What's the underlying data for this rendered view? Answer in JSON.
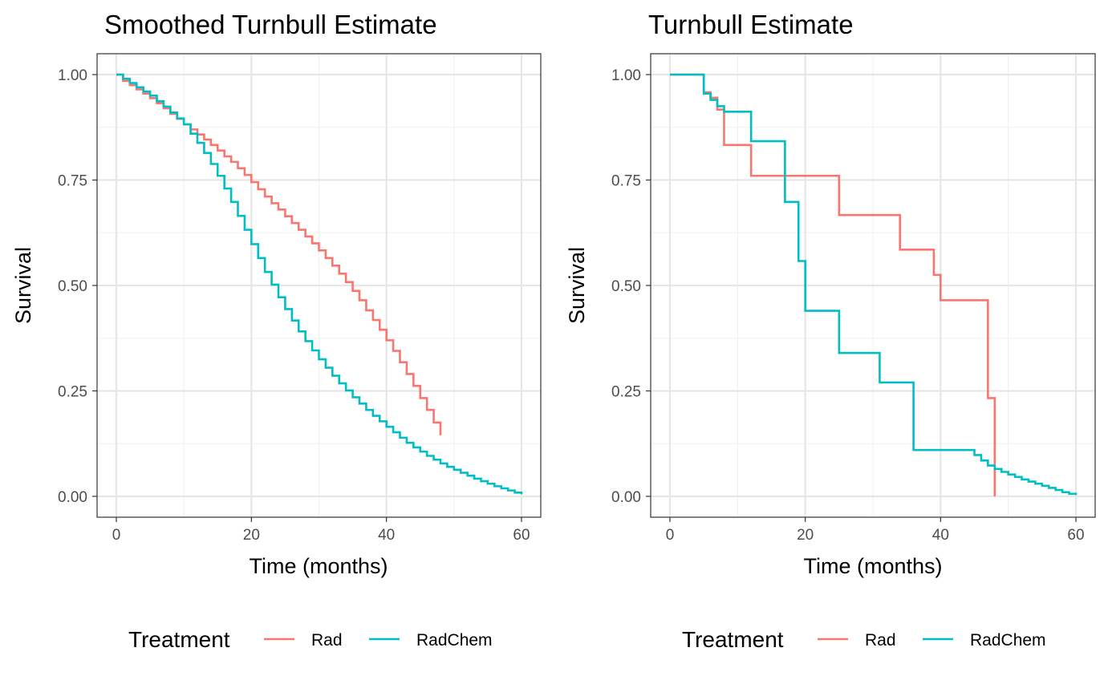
{
  "chart_data": [
    {
      "type": "line",
      "step": true,
      "title": "Smoothed Turnbull Estimate",
      "xlabel": "Time (months)",
      "ylabel": "Survival",
      "xlim": [
        0,
        60
      ],
      "ylim": [
        0,
        1
      ],
      "x_ticks": [
        0,
        20,
        40,
        60
      ],
      "y_ticks": [
        0,
        0.25,
        0.5,
        0.75,
        1
      ],
      "x_tick_labels": [
        "0",
        "20",
        "40",
        "60"
      ],
      "y_tick_labels": [
        "0.00",
        "0.25",
        "0.50",
        "0.75",
        "1.00"
      ],
      "grid": true,
      "legend": {
        "title": "Treatment",
        "position": "bottom"
      },
      "series": [
        {
          "name": "Rad",
          "color": "#F8766D",
          "x": [
            0,
            1,
            2,
            3,
            4,
            5,
            6,
            7,
            8,
            9,
            10,
            11,
            12,
            13,
            14,
            15,
            16,
            17,
            18,
            19,
            20,
            21,
            22,
            23,
            24,
            25,
            26,
            27,
            28,
            29,
            30,
            31,
            32,
            33,
            34,
            35,
            36,
            37,
            38,
            39,
            40,
            41,
            42,
            43,
            44,
            45,
            46,
            47,
            48
          ],
          "y": [
            1.0,
            0.985,
            0.975,
            0.965,
            0.955,
            0.944,
            0.932,
            0.92,
            0.907,
            0.895,
            0.882,
            0.87,
            0.858,
            0.846,
            0.833,
            0.82,
            0.806,
            0.793,
            0.778,
            0.762,
            0.745,
            0.728,
            0.711,
            0.695,
            0.68,
            0.664,
            0.648,
            0.632,
            0.616,
            0.6,
            0.583,
            0.565,
            0.547,
            0.528,
            0.508,
            0.487,
            0.465,
            0.441,
            0.418,
            0.395,
            0.37,
            0.345,
            0.318,
            0.29,
            0.262,
            0.233,
            0.205,
            0.175,
            0.145
          ]
        },
        {
          "name": "RadChem",
          "color": "#00BFC4",
          "x": [
            0,
            1,
            2,
            3,
            4,
            5,
            6,
            7,
            8,
            9,
            10,
            11,
            12,
            13,
            14,
            15,
            16,
            17,
            18,
            19,
            20,
            21,
            22,
            23,
            24,
            25,
            26,
            27,
            28,
            29,
            30,
            31,
            32,
            33,
            34,
            35,
            36,
            37,
            38,
            39,
            40,
            41,
            42,
            43,
            44,
            45,
            46,
            47,
            48,
            49,
            50,
            51,
            52,
            53,
            54,
            55,
            56,
            57,
            58,
            59,
            60
          ],
          "y": [
            1.0,
            0.99,
            0.98,
            0.97,
            0.96,
            0.95,
            0.937,
            0.924,
            0.91,
            0.896,
            0.882,
            0.86,
            0.838,
            0.814,
            0.788,
            0.76,
            0.73,
            0.698,
            0.665,
            0.632,
            0.598,
            0.565,
            0.532,
            0.502,
            0.472,
            0.444,
            0.417,
            0.391,
            0.368,
            0.346,
            0.325,
            0.305,
            0.286,
            0.268,
            0.251,
            0.235,
            0.22,
            0.205,
            0.191,
            0.178,
            0.165,
            0.152,
            0.139,
            0.127,
            0.116,
            0.106,
            0.096,
            0.087,
            0.078,
            0.07,
            0.063,
            0.056,
            0.049,
            0.042,
            0.036,
            0.03,
            0.024,
            0.019,
            0.014,
            0.009,
            0.005
          ]
        }
      ]
    },
    {
      "type": "line",
      "step": true,
      "title": "Turnbull Estimate",
      "xlabel": "Time (months)",
      "ylabel": "Survival",
      "xlim": [
        0,
        60
      ],
      "ylim": [
        0,
        1
      ],
      "x_ticks": [
        0,
        20,
        40,
        60
      ],
      "y_ticks": [
        0,
        0.25,
        0.5,
        0.75,
        1
      ],
      "x_tick_labels": [
        "0",
        "20",
        "40",
        "60"
      ],
      "y_tick_labels": [
        "0.00",
        "0.25",
        "0.50",
        "0.75",
        "1.00"
      ],
      "grid": true,
      "legend": {
        "title": "Treatment",
        "position": "bottom"
      },
      "series": [
        {
          "name": "Rad",
          "color": "#F8766D",
          "x": [
            0,
            5,
            6,
            7,
            8,
            12,
            25,
            34,
            39,
            40,
            47,
            48
          ],
          "y": [
            1.0,
            0.958,
            0.945,
            0.917,
            0.833,
            0.76,
            0.667,
            0.585,
            0.525,
            0.465,
            0.233,
            0.0
          ]
        },
        {
          "name": "RadChem",
          "color": "#00BFC4",
          "x": [
            0,
            5,
            6,
            7,
            8,
            12,
            17,
            19,
            20,
            25,
            31,
            36,
            45,
            46,
            47,
            48,
            49,
            50,
            51,
            52,
            53,
            54,
            55,
            56,
            57,
            58,
            59,
            60
          ],
          "y": [
            1.0,
            0.955,
            0.94,
            0.925,
            0.912,
            0.842,
            0.698,
            0.558,
            0.44,
            0.34,
            0.27,
            0.11,
            0.098,
            0.085,
            0.073,
            0.065,
            0.058,
            0.052,
            0.046,
            0.04,
            0.035,
            0.03,
            0.025,
            0.02,
            0.015,
            0.01,
            0.006,
            0.003
          ]
        }
      ]
    }
  ]
}
